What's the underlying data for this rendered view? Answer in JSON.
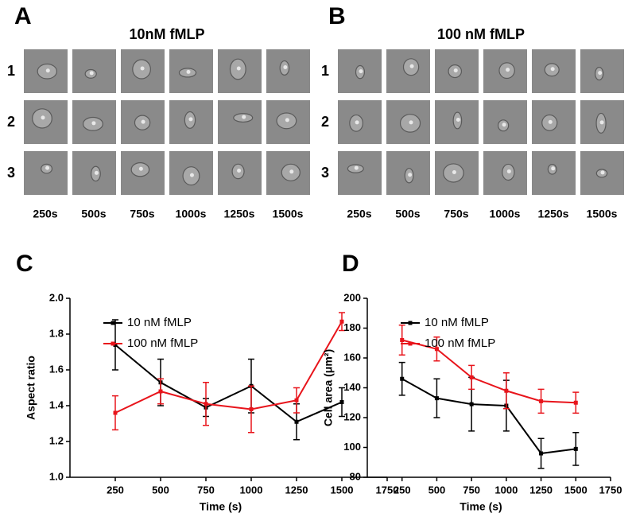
{
  "figure": {
    "panels": [
      {
        "letter": "A",
        "title": "10nM fMLP",
        "rows": [
          "1",
          "2",
          "3"
        ],
        "columns": [
          "250s",
          "500s",
          "750s",
          "1000s",
          "1250s",
          "1500s"
        ]
      },
      {
        "letter": "B",
        "title": "100 nM fMLP",
        "rows": [
          "1",
          "2",
          "3"
        ],
        "columns": [
          "250s",
          "500s",
          "750s",
          "1000s",
          "1250s",
          "1500s"
        ]
      }
    ]
  },
  "chart_data": [
    {
      "letter": "C",
      "type": "line",
      "xlabel": "Time (s)",
      "ylabel": "Aspect ratio",
      "x": [
        250,
        500,
        750,
        1000,
        1250,
        1500
      ],
      "xlim": [
        0,
        1750
      ],
      "xticks": [
        250,
        500,
        750,
        1000,
        1250,
        1500,
        1750
      ],
      "ylim": [
        1.0,
        2.0
      ],
      "yticks": [
        {
          "value": 1.0,
          "label": "1.0"
        },
        1.2,
        1.4,
        1.6,
        1.8,
        {
          "value": 2.0,
          "label": "2.0"
        }
      ],
      "legend": "upper right",
      "series": [
        {
          "name": "10 nM fMLP",
          "color": "#000000",
          "values": [
            1.74,
            1.53,
            1.39,
            1.51,
            1.31,
            1.42
          ],
          "errors": [
            0.14,
            0.13,
            0.05,
            0.15,
            0.1,
            0.08
          ]
        },
        {
          "name": "100 nM fMLP",
          "color": "#e8141b",
          "values": [
            1.36,
            1.48,
            1.41,
            1.38,
            1.43,
            1.87
          ],
          "errors": [
            0.095,
            0.07,
            0.12,
            0.13,
            0.07,
            0.05
          ]
        }
      ]
    },
    {
      "letter": "D",
      "type": "line",
      "xlabel": "Time (s)",
      "ylabel": "Cell area (μm²)",
      "x": [
        250,
        500,
        750,
        1000,
        1250,
        1500
      ],
      "xlim": [
        0,
        1750
      ],
      "xticks": [
        250,
        500,
        750,
        1000,
        1250,
        1500,
        1750
      ],
      "ylim": [
        80,
        200
      ],
      "yticks": [
        80,
        100,
        120,
        140,
        160,
        180,
        200
      ],
      "legend": "upper right",
      "series": [
        {
          "name": "10 nM fMLP",
          "color": "#000000",
          "values": [
            146,
            133,
            129,
            128,
            96,
            99
          ],
          "errors": [
            11,
            13,
            18,
            17,
            10,
            11
          ]
        },
        {
          "name": "100 nM fMLP",
          "color": "#e8141b",
          "values": [
            172,
            166,
            147,
            138,
            131,
            130
          ],
          "errors": [
            10,
            8,
            8,
            12,
            8,
            7
          ]
        }
      ]
    }
  ]
}
